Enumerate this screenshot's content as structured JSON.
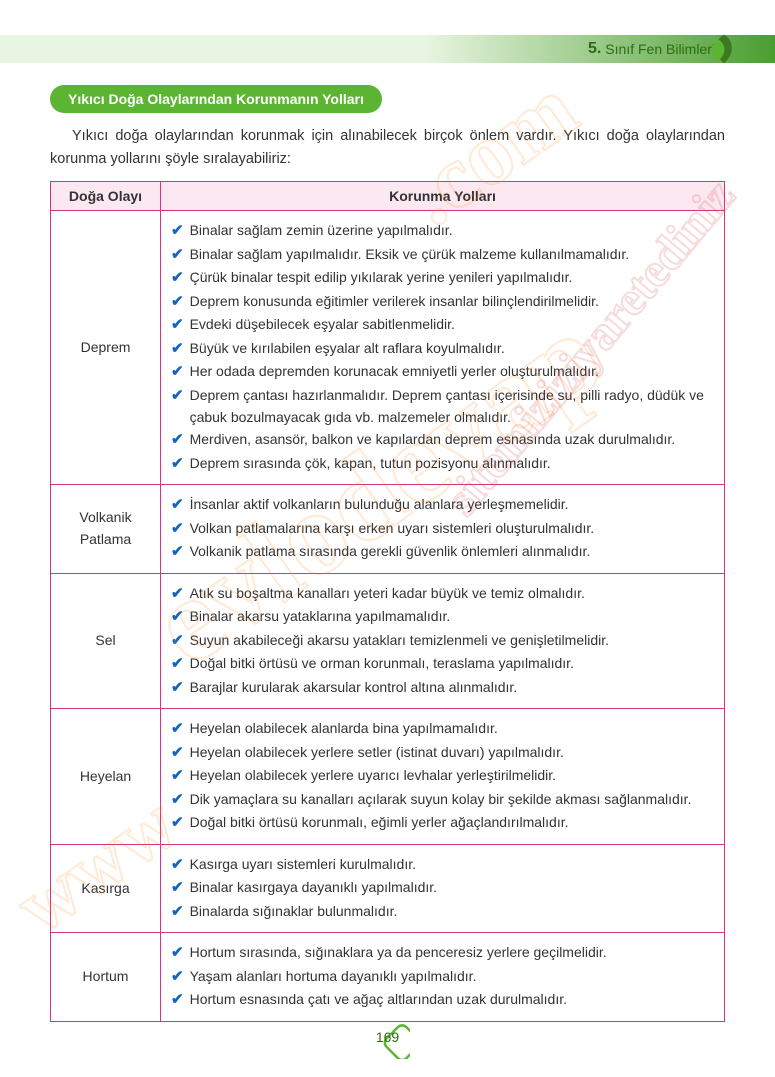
{
  "header": {
    "grade": "5.",
    "subject": "Sınıf Fen Bilimleri"
  },
  "section_title": "Yıkıcı Doğa Olaylarından Korunmanın Yolları",
  "intro": "Yıkıcı doğa olaylarından korunmak için alınabilecek birçok önlem vardır. Yıkıcı doğa olaylarından korunma yollarını şöyle sıralayabiliriz:",
  "table": {
    "headers": [
      "Doğa Olayı",
      "Korunma Yolları"
    ],
    "rows": [
      {
        "event": "Deprem",
        "items": [
          "Binalar sağlam zemin üzerine yapılmalıdır.",
          "Binalar sağlam yapılmalıdır. Eksik ve çürük malzeme kullanılmamalıdır.",
          "Çürük binalar tespit edilip yıkılarak yerine yenileri yapılmalıdır.",
          "Deprem konusunda eğitimler verilerek insanlar bilinçlendirilmelidir.",
          "Evdeki düşebilecek eşyalar sabitlenmelidir.",
          "Büyük ve kırılabilen eşyalar alt raflara koyulmalıdır.",
          "Her odada depremden korunacak emniyetli yerler oluşturulmalıdır.",
          "Deprem çantası hazırlanmalıdır. Deprem çantası içerisinde su, pilli radyo, düdük ve çabuk bozulmayacak gıda vb. malzemeler olmalıdır.",
          "Merdiven, asansör, balkon ve kapılardan deprem esnasında uzak durulmalıdır.",
          "Deprem sırasında çök, kapan, tutun pozisyonu alınmalıdır."
        ]
      },
      {
        "event": "Volkanik Patlama",
        "items": [
          "İnsanlar aktif volkanların bulunduğu alanlara yerleşmemelidir.",
          "Volkan patlamalarına karşı erken uyarı sistemleri oluşturulmalıdır.",
          "Volkanik patlama sırasında gerekli güvenlik önlemleri alınmalıdır."
        ]
      },
      {
        "event": "Sel",
        "items": [
          "Atık su boşaltma kanalları yeteri kadar büyük ve temiz olmalıdır.",
          "Binalar akarsu yataklarına yapılmamalıdır.",
          "Suyun akabileceği akarsu yatakları temizlenmeli ve genişletilmelidir.",
          "Doğal bitki örtüsü ve orman korunmalı, teraslama yapılmalıdır.",
          "Barajlar kurularak akarsular kontrol altına alınmalıdır."
        ]
      },
      {
        "event": "Heyelan",
        "items": [
          "Heyelan olabilecek alanlarda bina yapılmamalıdır.",
          "Heyelan olabilecek yerlere setler (istinat duvarı) yapılmalıdır.",
          "Heyelan olabilecek yerlere uyarıcı levhalar yerleştirilmelidir.",
          "Dik yamaçlara su kanalları açılarak suyun kolay bir şekilde akması sağlanmalıdır.",
          "Doğal bitki örtüsü korunmalı, eğimli yerler ağaçlandırılmalıdır."
        ]
      },
      {
        "event": "Kasırga",
        "items": [
          "Kasırga uyarı sistemleri kurulmalıdır.",
          "Binalar kasırgaya dayanıklı yapılmalıdır.",
          "Binalarda sığınaklar bulunmalıdır."
        ]
      },
      {
        "event": "Hortum",
        "items": [
          "Hortum sırasında, sığınaklara ya da penceresiz yerlere geçilmelidir.",
          "Yaşam alanları hortuma dayanıklı yapılmalıdır.",
          "Hortum esnasında çatı ve ağaç altlarından uzak durulmalıdır."
        ]
      }
    ]
  },
  "page_number": "169",
  "colors": {
    "badge_bg": "#5cb532",
    "header_dark": "#4a9e2f",
    "header_light": "#e8f5e0",
    "table_border": "#d63384",
    "th_bg": "#fce8f0",
    "check_color": "#1565c0",
    "text": "#333333"
  },
  "watermarks": {
    "w1": ".com",
    "w2": "evlodevap",
    "w3": "www",
    "w4": "sitemiziziyaretediniz"
  }
}
